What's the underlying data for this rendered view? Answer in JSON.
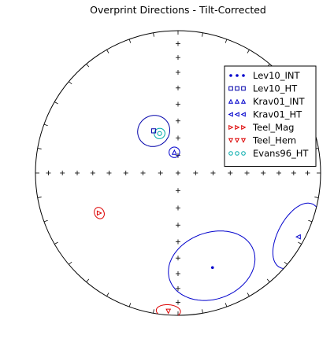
{
  "chart_data": {
    "type": "scatter",
    "projection": "equal-area stereonet",
    "title": "Overprint Directions - Tilt-Corrected",
    "axes": {
      "declination_range": [
        0,
        360
      ],
      "inclination_range": [
        0,
        90
      ],
      "grid": "plus-marks every 10 degrees on N-S and E-W diameters"
    },
    "legend": {
      "placement": "top-right"
    },
    "series": [
      {
        "name": "Lev10_INT",
        "marker": "dot",
        "color": "#0000cc",
        "dec": 160,
        "inc": 30,
        "a95": 22
      },
      {
        "name": "Lev10_HT",
        "marker": "square",
        "color": "#0000aa",
        "dec": 330,
        "inc": 62,
        "a95": 9
      },
      {
        "name": "Krav01_INT",
        "marker": "triangle-up",
        "color": "#0000cc",
        "dec": 350,
        "inc": 78,
        "a95": 3
      },
      {
        "name": "Krav01_HT",
        "marker": "triangle-left",
        "color": "#0000cc",
        "dec": 118,
        "inc": 5,
        "a95": 15
      },
      {
        "name": "Teel_Mag",
        "marker": "triangle-right",
        "color": "#dd0000",
        "dec": 243,
        "inc": 38,
        "a95": 3
      },
      {
        "name": "Teel_Hem",
        "marker": "triangle-down",
        "color": "#dd0000",
        "dec": 184,
        "inc": 3,
        "a95": 5
      },
      {
        "name": "Evans96_HT",
        "marker": "circle",
        "color": "#00aaaa",
        "dec": 335,
        "inc": 65,
        "a95": 3
      }
    ]
  }
}
